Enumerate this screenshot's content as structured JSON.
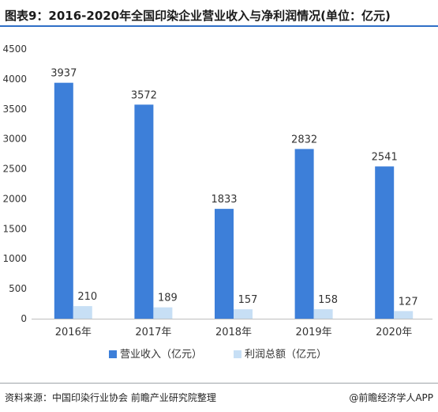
{
  "header": {
    "title": "图表9：2016-2020年全国印染企业营业收入与净利润情况(单位：亿元)"
  },
  "chart_data": {
    "type": "bar",
    "categories": [
      "2016年",
      "2017年",
      "2018年",
      "2019年",
      "2020年"
    ],
    "series": [
      {
        "name": "营业收入（亿元）",
        "values": [
          3937,
          3572,
          1833,
          2832,
          2541
        ],
        "color": "#3d7fd9"
      },
      {
        "name": "利润总额（亿元）",
        "values": [
          210,
          189,
          157,
          158,
          127
        ],
        "color": "#c7dff5"
      }
    ],
    "ylim": [
      0,
      4500
    ],
    "yticks": [
      0,
      500,
      1000,
      1500,
      2000,
      2500,
      3000,
      3500,
      4000,
      4500
    ],
    "grid": false,
    "legend_position": "bottom-center"
  },
  "footer": {
    "source": "资料来源：中国印染行业协会 前瞻产业研究院整理",
    "brand": "@前瞻经济学人APP"
  }
}
